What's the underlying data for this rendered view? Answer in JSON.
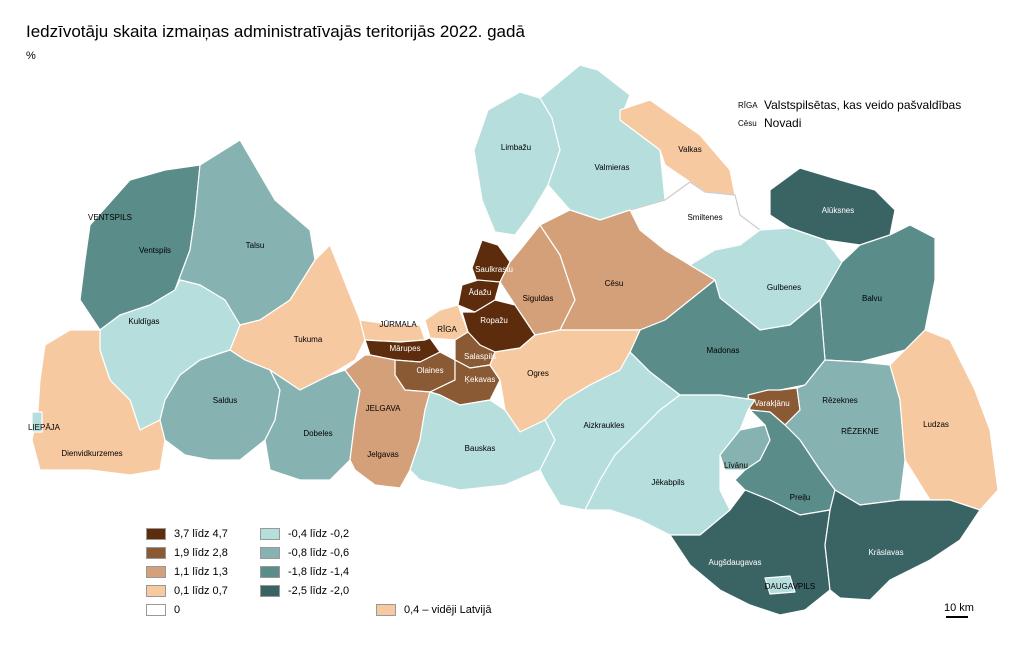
{
  "title": "Iedzīvotāju skaita izmaiņas administratīvajās teritorijās 2022. gadā",
  "unit": "%",
  "key": {
    "city_sample": "RĪGA",
    "city_desc": "Valstspilsētas, kas veido pašvaldības",
    "county_sample": "Cēsu",
    "county_desc": "Novadi"
  },
  "legend": [
    {
      "label": "3,7 līdz 4,7",
      "color": "#5c2c0c"
    },
    {
      "label": "1,9 līdz 2,8",
      "color": "#8a5a34"
    },
    {
      "label": "1,1 līdz 1,3",
      "color": "#d4a07a"
    },
    {
      "label": "0,1 līdz 0,7",
      "color": "#f7c9a0"
    },
    {
      "label": "0",
      "color": "#ffffff"
    },
    {
      "label": "-0,4 līdz -0,2",
      "color": "#b5dedd"
    },
    {
      "label": "-0,8 līdz -0,6",
      "color": "#86b3b1"
    },
    {
      "label": "-1,8 līdz -1,4",
      "color": "#5a8c89"
    },
    {
      "label": "-2,5 līdz -2,0",
      "color": "#3a6464"
    }
  ],
  "average": {
    "label": "0,4 – vidēji Latvijā",
    "color": "#f7c9a0"
  },
  "scale": "10 km",
  "regions": {
    "limbazu": "Limbažu",
    "valmieras": "Valmieras",
    "valkas": "Valkas",
    "smiltenes": "Smiltenes",
    "aluksnes": "Alūksnes",
    "ventspils_n": "Ventspils",
    "talsu": "Talsu",
    "saulkrastu": "Saulkrastu",
    "adazu": "Ādažu",
    "siguldas": "Siguldas",
    "cesu": "Cēsu",
    "gulbenes": "Gulbenes",
    "balvu": "Balvu",
    "kuldigas": "Kuldīgas",
    "tukuma": "Tukuma",
    "ropazu": "Ropažu",
    "marupes": "Mārupes",
    "salaspils": "Salaspils",
    "olaines": "Olaines",
    "kekavas": "Ķekavas",
    "ogres": "Ogres",
    "madonas": "Madonas",
    "varaklanu": "Varakļānu",
    "rezeknes_n": "Rēzeknes",
    "ludzas": "Ludzas",
    "saldus": "Saldus",
    "dobeles": "Dobeles",
    "jelgavas_n": "Jelgavas",
    "bauskas": "Bauskas",
    "aizkraukles": "Aizkraukles",
    "jekabpils": "Jēkabpils",
    "livanu": "Līvānu",
    "preilu": "Preiļu",
    "dienvidkurzemes": "Dienvidkurzemes",
    "augsdaugavas": "Augšdaugavas",
    "kraslavas": "Krāslavas"
  },
  "cities": {
    "ventspils": "VENTSPILS",
    "liepaja": "LIEPĀJA",
    "jurmala": "JŪRMALA",
    "riga": "RĪGA",
    "jelgava": "JELGAVA",
    "rezekne": "RĒZEKNE",
    "daugavpils": "DAUGAVPILS"
  }
}
